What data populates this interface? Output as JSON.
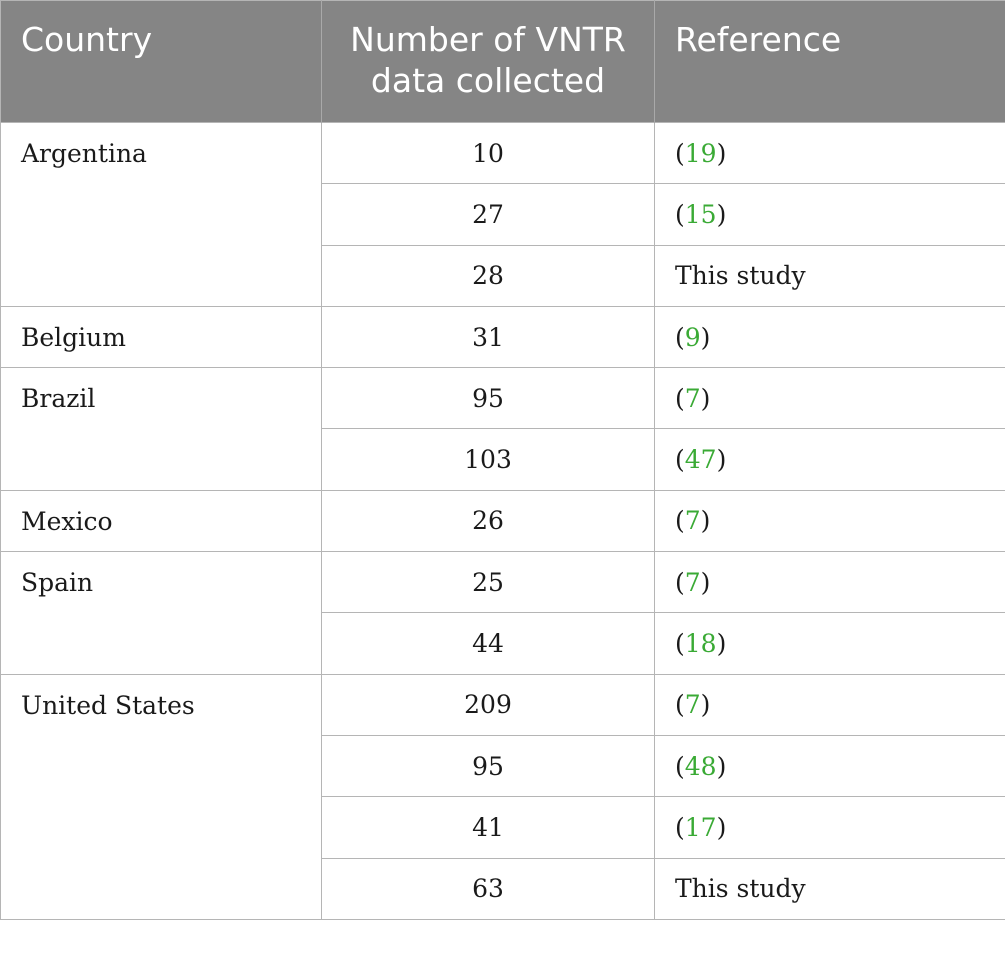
{
  "table": {
    "headers": {
      "country": "Country",
      "number": "Number of VNTR data collected",
      "reference": "Reference"
    },
    "groups": [
      {
        "country": "Argentina",
        "rows": [
          {
            "number": "10",
            "reference": "19",
            "is_link": true
          },
          {
            "number": "27",
            "reference": "15",
            "is_link": true
          },
          {
            "number": "28",
            "reference": "This study",
            "is_link": false
          }
        ]
      },
      {
        "country": "Belgium",
        "rows": [
          {
            "number": "31",
            "reference": "9",
            "is_link": true
          }
        ]
      },
      {
        "country": "Brazil",
        "rows": [
          {
            "number": "95",
            "reference": "7",
            "is_link": true
          },
          {
            "number": "103",
            "reference": "47",
            "is_link": true
          }
        ]
      },
      {
        "country": "Mexico",
        "rows": [
          {
            "number": "26",
            "reference": "7",
            "is_link": true
          }
        ]
      },
      {
        "country": "Spain",
        "rows": [
          {
            "number": "25",
            "reference": "7",
            "is_link": true
          },
          {
            "number": "44",
            "reference": "18",
            "is_link": true
          }
        ]
      },
      {
        "country": "United States",
        "rows": [
          {
            "number": "209",
            "reference": "7",
            "is_link": true
          },
          {
            "number": "95",
            "reference": "48",
            "is_link": true
          },
          {
            "number": "41",
            "reference": "17",
            "is_link": true
          },
          {
            "number": "63",
            "reference": "This study",
            "is_link": false
          }
        ]
      }
    ]
  },
  "colors": {
    "header_bg": "#858585",
    "link": "#3aaa35"
  }
}
